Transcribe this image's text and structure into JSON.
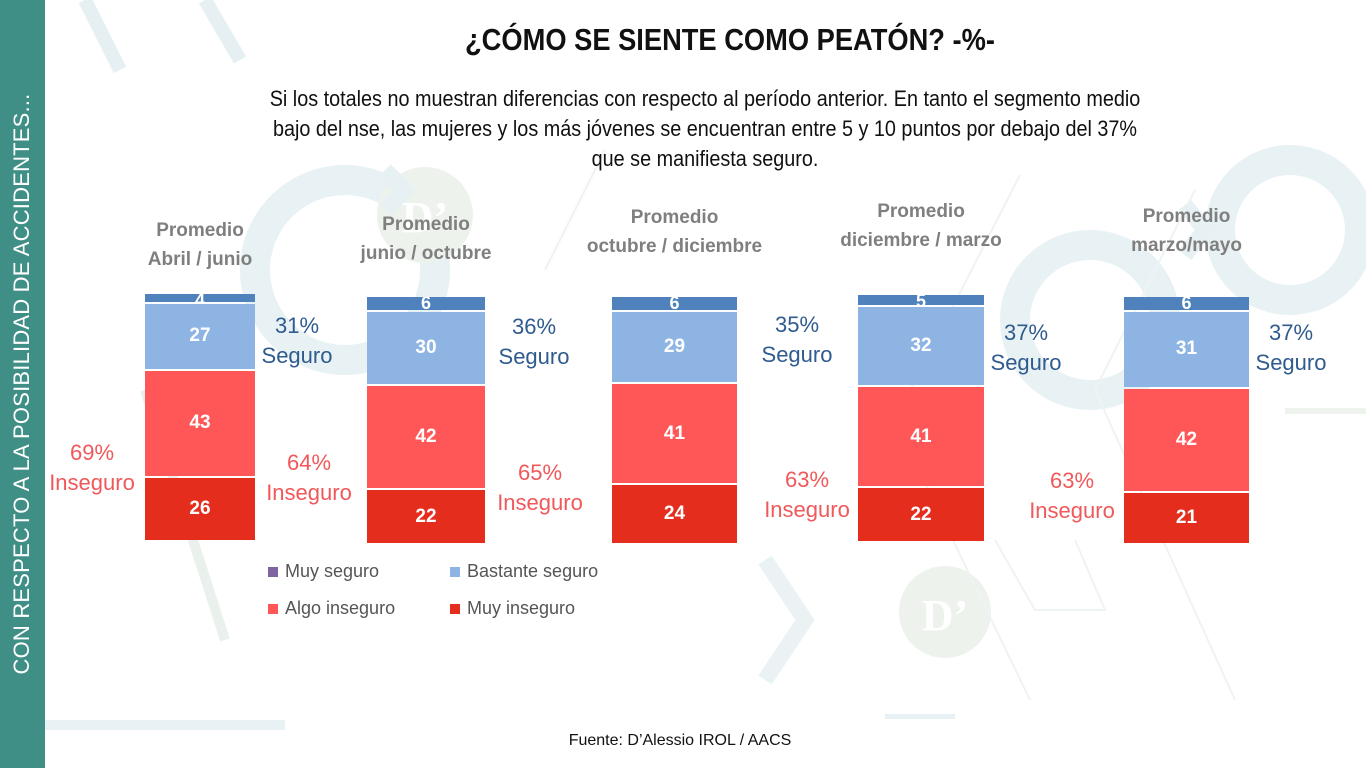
{
  "sidebar": {
    "text": "CON RESPECTO A LA POSIBILIDAD DE ACCIDENTES..."
  },
  "header": {
    "title": "¿CÓMO SE SIENTE COMO PEATÓN? -%-",
    "subtitle": "Si los totales no muestran diferencias con respecto al período anterior. En tanto el segmento medio bajo del nse, las mujeres y los más jóvenes se encuentran entre 5 y 10 puntos por debajo del 37% que se manifiesta seguro."
  },
  "colors": {
    "muy_seguro_bar": "#4f81bd",
    "muy_seguro_legend": "#8064a2",
    "bastante_seguro": "#8eb4e3",
    "algo_inseguro": "#ff5757",
    "muy_inseguro": "#e52d1d",
    "seguro_text": "#2f5b8e",
    "inseguro_text": "#f0585a",
    "sidebar": "#3f8f86"
  },
  "chart_data": {
    "type": "bar",
    "stacked": true,
    "title": "¿CÓMO SE SIENTE COMO PEATÓN? -%-",
    "categories": [
      [
        "Promedio",
        "Abril / junio"
      ],
      [
        "Promedio",
        "junio / octubre"
      ],
      [
        "Promedio",
        "octubre / diciembre"
      ],
      [
        "Promedio",
        "diciembre / marzo"
      ],
      [
        "Promedio",
        "marzo/mayo"
      ]
    ],
    "series": [
      {
        "name": "Muy seguro",
        "values": [
          4,
          6,
          6,
          5,
          6
        ]
      },
      {
        "name": "Bastante seguro",
        "values": [
          27,
          30,
          29,
          32,
          31
        ]
      },
      {
        "name": "Algo inseguro",
        "values": [
          43,
          42,
          41,
          41,
          42
        ]
      },
      {
        "name": "Muy inseguro",
        "values": [
          26,
          22,
          24,
          22,
          21
        ]
      }
    ],
    "annotations": {
      "seguro": [
        {
          "pct": "31%",
          "label": "Seguro"
        },
        {
          "pct": "36%",
          "label": "Seguro"
        },
        {
          "pct": "35%",
          "label": "Seguro"
        },
        {
          "pct": "37%",
          "label": "Seguro"
        },
        {
          "pct": "37%",
          "label": "Seguro"
        }
      ],
      "inseguro": [
        {
          "pct": "69%",
          "label": "Inseguro"
        },
        {
          "pct": "64%",
          "label": "Inseguro"
        },
        {
          "pct": "65%",
          "label": "Inseguro"
        },
        {
          "pct": "63%",
          "label": "Inseguro"
        },
        {
          "pct": "63%",
          "label": "Inseguro"
        }
      ]
    },
    "legend": {
      "position": "bottom-left",
      "items": [
        "Muy seguro",
        "Bastante seguro",
        "Algo inseguro",
        "Muy inseguro"
      ]
    },
    "xlabel": "",
    "ylabel": "",
    "ylim": [
      0,
      100
    ],
    "grid": false
  },
  "footer": {
    "source": "Fuente: D’Alessio IROL / AACS"
  }
}
